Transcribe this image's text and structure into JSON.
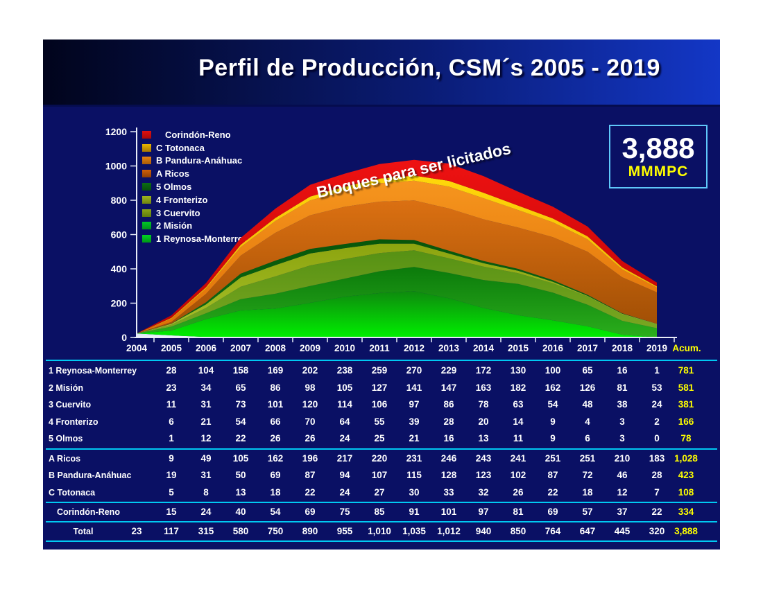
{
  "slide": {
    "title": "Perfil de Producción, CSM´s 2005 - 2019",
    "badge": {
      "value": "3,888",
      "unit": "MMMPC"
    },
    "annotation": "Bloques para ser licitados"
  },
  "colors": {
    "body_background": "#0A1064",
    "header_gradient_left": "#01041C",
    "header_gradient_right": "#1337C6",
    "table_rule_cyan": "#00C9F2",
    "accent_yellow": "#FFFF00",
    "badge_border": "#5FC8FA",
    "text_white": "#FFFFFF"
  },
  "legend": {
    "items": [
      {
        "id": "corindon-reno",
        "label": "Corindón-Reno",
        "indent": true,
        "swatch_top": "#E01010",
        "swatch_bottom": "#A80A0A"
      },
      {
        "id": "totonaca",
        "label": "C Totonaca",
        "indent": false,
        "swatch_top": "#E8B400",
        "swatch_bottom": "#A87800"
      },
      {
        "id": "pandura-anahuac",
        "label": "B Pandura-Anáhuac",
        "indent": false,
        "swatch_top": "#E88410",
        "swatch_bottom": "#A85A08"
      },
      {
        "id": "ricos",
        "label": "A Ricos",
        "indent": false,
        "swatch_top": "#D06008",
        "swatch_bottom": "#8E3E04"
      },
      {
        "id": "olmos",
        "label": "5 Olmos",
        "indent": false,
        "swatch_top": "#0B6E14",
        "swatch_bottom": "#084E0C"
      },
      {
        "id": "fronterizo",
        "label": "4 Fronterizo",
        "indent": false,
        "swatch_top": "#9CB41E",
        "swatch_bottom": "#6E8410"
      },
      {
        "id": "cuervito",
        "label": "3 Cuervito",
        "indent": false,
        "swatch_top": "#8AA418",
        "swatch_bottom": "#5E7A0E"
      },
      {
        "id": "mision",
        "label": "2 Misión",
        "indent": false,
        "swatch_top": "#00C828",
        "swatch_bottom": "#00901C"
      },
      {
        "id": "reynosa-monterrey",
        "label": "1 Reynosa-Monterrey",
        "indent": false,
        "swatch_top": "#00D422",
        "swatch_bottom": "#009818"
      }
    ]
  },
  "chart_data": {
    "type": "area",
    "stacked": true,
    "title": "",
    "xlabel": "",
    "ylabel": "",
    "grid": false,
    "legend_position": "top-left",
    "x": [
      2004,
      2005,
      2006,
      2007,
      2008,
      2009,
      2010,
      2011,
      2012,
      2013,
      2014,
      2015,
      2016,
      2017,
      2018,
      2019
    ],
    "ylim": [
      0,
      1200
    ],
    "yticks": [
      0,
      200,
      400,
      600,
      800,
      1000,
      1200
    ],
    "annotation": "Bloques para ser licitados",
    "series": [
      {
        "id": "base-2004",
        "name": "",
        "color_top": "#D7E2F4",
        "color_bottom": "#EFF4FF",
        "values": [
          23,
          12,
          3,
          0,
          0,
          0,
          0,
          0,
          0,
          0,
          0,
          0,
          0,
          0,
          0,
          0
        ]
      },
      {
        "id": "reynosa-monterrey",
        "name": "1 Reynosa-Monterrey",
        "color_top": "#0E8A0E",
        "color_bottom": "#00EF00",
        "values": [
          0,
          28,
          104,
          158,
          169,
          202,
          238,
          259,
          270,
          229,
          172,
          130,
          100,
          65,
          16,
          1
        ]
      },
      {
        "id": "mision",
        "name": "2 Misión",
        "color_top": "#0B7A0B",
        "color_bottom": "#2BAE1C",
        "values": [
          0,
          23,
          34,
          65,
          86,
          98,
          105,
          127,
          141,
          147,
          163,
          182,
          162,
          126,
          81,
          53
        ]
      },
      {
        "id": "cuervito",
        "name": "3 Cuervito",
        "color_top": "#569114",
        "color_bottom": "#7CA821",
        "values": [
          0,
          11,
          31,
          73,
          101,
          120,
          114,
          106,
          97,
          86,
          78,
          63,
          54,
          48,
          38,
          24
        ]
      },
      {
        "id": "fronterizo",
        "name": "4 Fronterizo",
        "color_top": "#8CA40F",
        "color_bottom": "#A8C22A",
        "values": [
          0,
          6,
          21,
          54,
          66,
          70,
          64,
          55,
          39,
          28,
          20,
          14,
          9,
          4,
          3,
          2
        ]
      },
      {
        "id": "olmos",
        "name": "5 Olmos",
        "color_top": "#07560A",
        "color_bottom": "#0D6F12",
        "values": [
          0,
          1,
          12,
          22,
          26,
          26,
          24,
          25,
          21,
          16,
          13,
          11,
          9,
          6,
          3,
          0
        ]
      },
      {
        "id": "ricos",
        "name": "A Ricos",
        "color_top": "#DB7012",
        "color_bottom": "#9E4D04",
        "values": [
          0,
          9,
          49,
          105,
          162,
          196,
          217,
          220,
          231,
          246,
          243,
          241,
          251,
          251,
          210,
          183
        ]
      },
      {
        "id": "pandura-anahuac",
        "name": "B Pandura-Anáhuac",
        "color_top": "#F6951E",
        "color_bottom": "#DE7005",
        "values": [
          0,
          19,
          31,
          50,
          69,
          87,
          94,
          107,
          115,
          128,
          123,
          102,
          87,
          72,
          46,
          28
        ]
      },
      {
        "id": "totonaca",
        "name": "C Totonaca",
        "color_top": "#FFD80A",
        "color_bottom": "#ECA800",
        "values": [
          0,
          5,
          8,
          13,
          18,
          22,
          24,
          27,
          30,
          33,
          32,
          26,
          22,
          18,
          12,
          7
        ]
      },
      {
        "id": "corindon-reno",
        "name": "Corindón-Reno",
        "color_top": "#EE1212",
        "color_bottom": "#BC0303",
        "values": [
          0,
          15,
          24,
          40,
          54,
          69,
          75,
          85,
          91,
          101,
          97,
          81,
          69,
          57,
          37,
          22
        ]
      }
    ]
  },
  "table": {
    "col_headers": [
      "2004",
      "2005",
      "2006",
      "2007",
      "2008",
      "2009",
      "2010",
      "2011",
      "2012",
      "2013",
      "2014",
      "2015",
      "2016",
      "2017",
      "2018",
      "2019"
    ],
    "acum_header": "Acum.",
    "rows": [
      {
        "id": "reynosa-monterrey",
        "label": "1 Reynosa-Monterrey",
        "values": [
          "",
          "28",
          "104",
          "158",
          "169",
          "202",
          "238",
          "259",
          "270",
          "229",
          "172",
          "130",
          "100",
          "65",
          "16",
          "1"
        ],
        "acum": "781"
      },
      {
        "id": "mision",
        "label": "2 Misión",
        "values": [
          "",
          "23",
          "34",
          "65",
          "86",
          "98",
          "105",
          "127",
          "141",
          "147",
          "163",
          "182",
          "162",
          "126",
          "81",
          "53"
        ],
        "acum": "581"
      },
      {
        "id": "cuervito",
        "label": "3 Cuervito",
        "values": [
          "",
          "11",
          "31",
          "73",
          "101",
          "120",
          "114",
          "106",
          "97",
          "86",
          "78",
          "63",
          "54",
          "48",
          "38",
          "24"
        ],
        "acum": "381"
      },
      {
        "id": "fronterizo",
        "label": "4 Fronterizo",
        "values": [
          "",
          "6",
          "21",
          "54",
          "66",
          "70",
          "64",
          "55",
          "39",
          "28",
          "20",
          "14",
          "9",
          "4",
          "3",
          "2"
        ],
        "acum": "166"
      },
      {
        "id": "olmos",
        "label": "5 Olmos",
        "values": [
          "",
          "1",
          "12",
          "22",
          "26",
          "26",
          "24",
          "25",
          "21",
          "16",
          "13",
          "11",
          "9",
          "6",
          "3",
          "0"
        ],
        "acum": "78",
        "rule_after": true
      },
      {
        "id": "ricos",
        "label": "A Ricos",
        "values": [
          "",
          "9",
          "49",
          "105",
          "162",
          "196",
          "217",
          "220",
          "231",
          "246",
          "243",
          "241",
          "251",
          "251",
          "210",
          "183"
        ],
        "acum": "1,028"
      },
      {
        "id": "pandura-anahuac",
        "label": "B Pandura-Anáhuac",
        "values": [
          "",
          "19",
          "31",
          "50",
          "69",
          "87",
          "94",
          "107",
          "115",
          "128",
          "123",
          "102",
          "87",
          "72",
          "46",
          "28"
        ],
        "acum": "423"
      },
      {
        "id": "totonaca",
        "label": "C Totonaca",
        "values": [
          "",
          "5",
          "8",
          "13",
          "18",
          "22",
          "24",
          "27",
          "30",
          "33",
          "32",
          "26",
          "22",
          "18",
          "12",
          "7"
        ],
        "acum": "108",
        "rule_after": true
      },
      {
        "id": "corindon-reno",
        "label": "Corindón-Reno",
        "indent": true,
        "values": [
          "",
          "15",
          "24",
          "40",
          "54",
          "69",
          "75",
          "85",
          "91",
          "101",
          "97",
          "81",
          "69",
          "57",
          "37",
          "22"
        ],
        "acum": "334",
        "rule_after": true
      },
      {
        "id": "total",
        "label": "Total",
        "total": true,
        "values": [
          "23",
          "117",
          "315",
          "580",
          "750",
          "890",
          "955",
          "1,010",
          "1,035",
          "1,012",
          "940",
          "850",
          "764",
          "647",
          "445",
          "320"
        ],
        "acum": "3,888",
        "rule_after": true
      }
    ]
  }
}
